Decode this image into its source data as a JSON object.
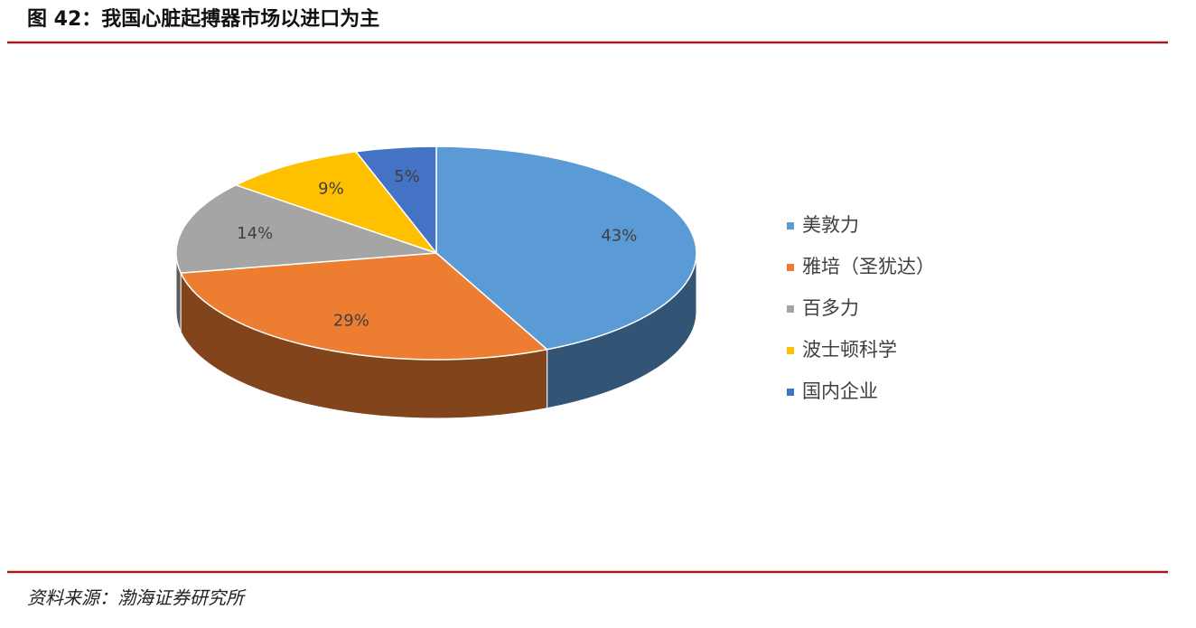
{
  "header": {
    "title": "图 42：我国心脏起搏器市场以进口为主"
  },
  "chart_data": {
    "type": "pie",
    "categories": [
      "美敦力",
      "雅培（圣犹达）",
      "百多力",
      "波士顿科学",
      "国内企业"
    ],
    "values": [
      43,
      29,
      14,
      9,
      5
    ],
    "value_labels": [
      "43%",
      "29%",
      "14%",
      "9%",
      "5%"
    ],
    "colors": [
      "#5b9bd5",
      "#ed7d31",
      "#a5a5a5",
      "#ffc000",
      "#4472c4"
    ],
    "legend": "right"
  },
  "footer": {
    "source": "资料来源：渤海证券研究所"
  }
}
